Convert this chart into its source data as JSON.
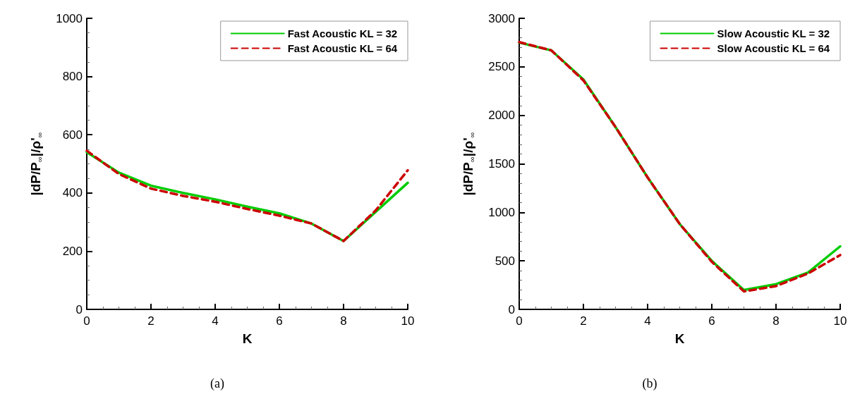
{
  "chart_data": [
    {
      "type": "line",
      "xlabel": "K",
      "ylabel": "|dP/P$_{∞}$|/ρ'$_{∞}$",
      "annotations": [
        "(a)"
      ],
      "x": [
        0,
        1,
        2,
        3,
        4,
        5,
        6,
        7,
        8,
        9,
        10
      ],
      "xlim": [
        0,
        10
      ],
      "xticks": [
        0,
        2,
        4,
        6,
        8,
        10
      ],
      "ylim": [
        0,
        1000
      ],
      "yticks": [
        0,
        200,
        400,
        600,
        800,
        1000
      ],
      "grid": false,
      "legend": "top right",
      "marker": "none",
      "series": [
        {
          "name": "Fast Acoustic KL = 32",
          "color": "#00cc00",
          "line_style": "solid",
          "values": [
            540,
            470,
            425,
            400,
            378,
            353,
            330,
            295,
            235,
            335,
            435
          ]
        },
        {
          "name": "Fast Acoustic KL = 64",
          "color": "#cc0000",
          "line_style": "dashed",
          "values": [
            545,
            465,
            415,
            390,
            370,
            345,
            322,
            295,
            235,
            340,
            478
          ]
        }
      ]
    },
    {
      "type": "line",
      "xlabel": "K",
      "ylabel": "|dP/P$_{∞}$|/ρ'$_{∞}$",
      "annotations": [
        "(b)"
      ],
      "x": [
        0,
        1,
        2,
        3,
        4,
        5,
        6,
        7,
        8,
        9,
        10
      ],
      "xlim": [
        0,
        10
      ],
      "xticks": [
        0,
        2,
        4,
        6,
        8,
        10
      ],
      "ylim": [
        0,
        3000
      ],
      "yticks": [
        0,
        500,
        1000,
        1500,
        2000,
        2500,
        3000
      ],
      "grid": false,
      "legend": "top right",
      "marker": "none",
      "series": [
        {
          "name": "Slow Acoustic KL = 32",
          "color": "#00cc00",
          "line_style": "solid",
          "values": [
            2750,
            2670,
            2370,
            1880,
            1360,
            880,
            500,
            200,
            260,
            380,
            650
          ]
        },
        {
          "name": "Slow Acoustic KL = 64",
          "color": "#cc0000",
          "line_style": "dashed",
          "values": [
            2755,
            2670,
            2360,
            1880,
            1360,
            880,
            490,
            185,
            240,
            370,
            560
          ]
        }
      ]
    }
  ]
}
